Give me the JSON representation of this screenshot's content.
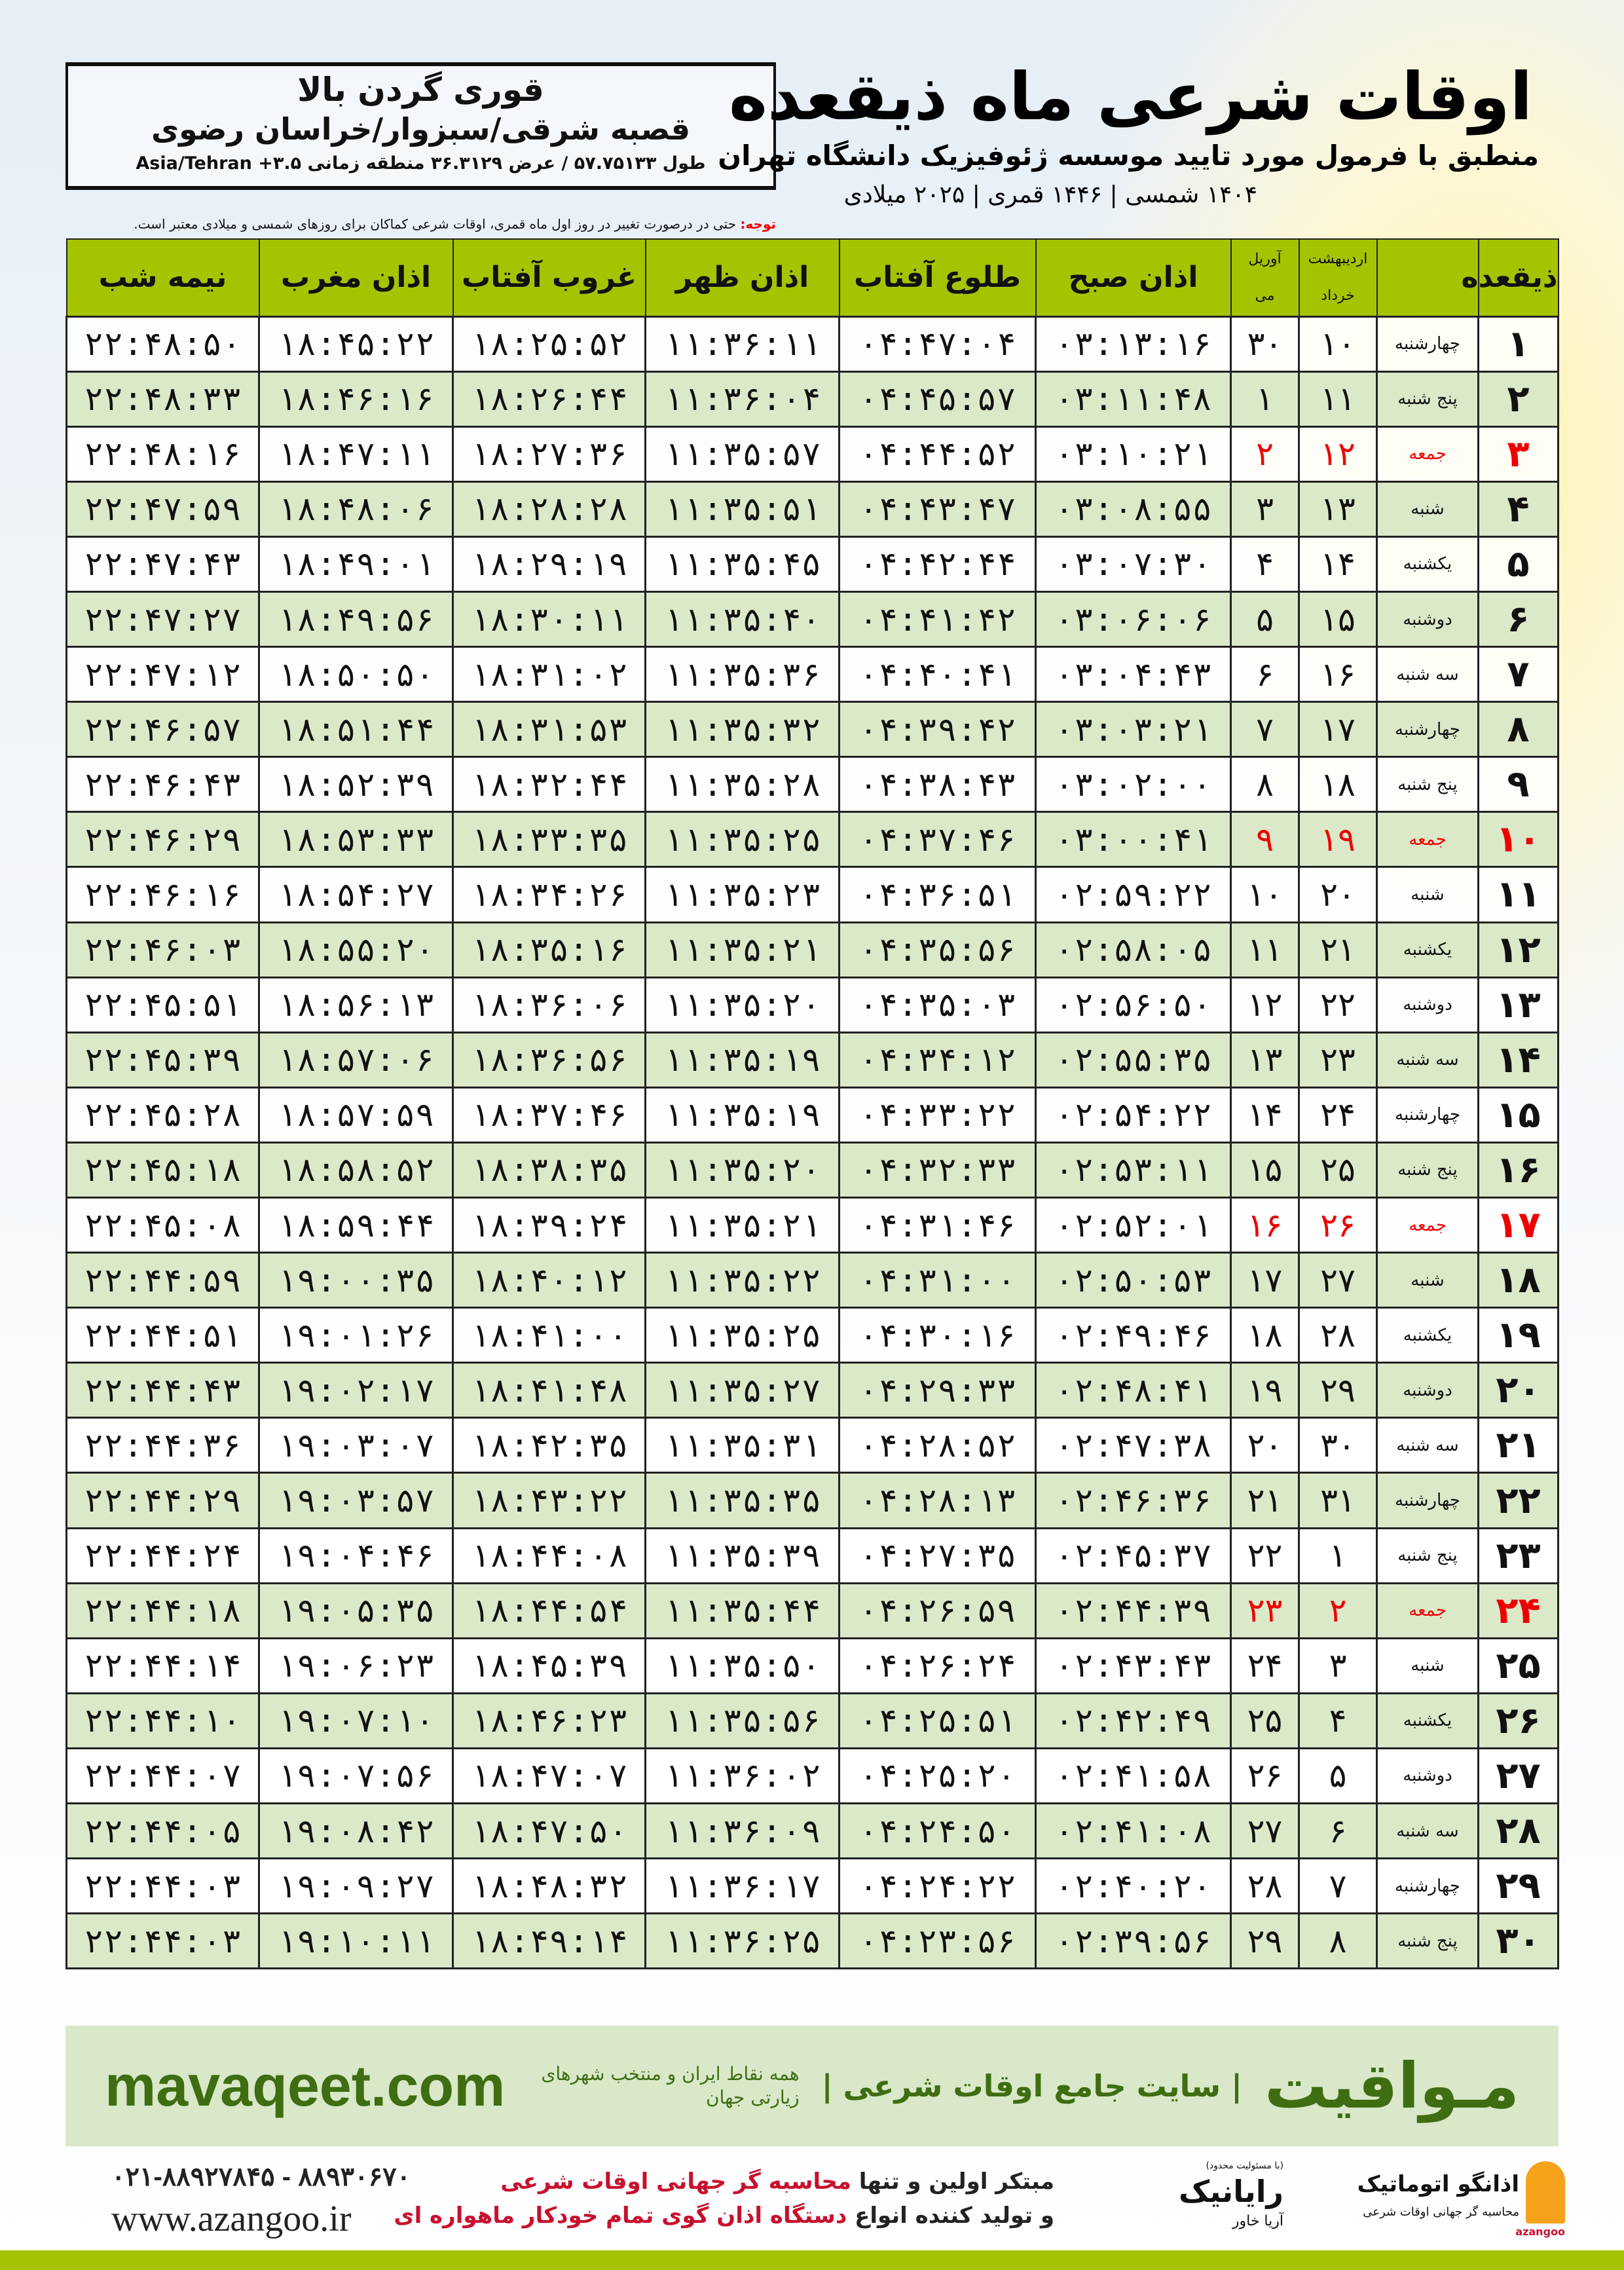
{
  "header": {
    "title": "اوقات شرعی ماه ذیقعده",
    "subtitle": "منطبق با فرمول مورد تایید موسسه ژئوفیزیک دانشگاه تهران",
    "years": "۱۴۰۴ شمسی | ۱۴۴۶ قمری | ۲۰۲۵ میلادی"
  },
  "location": {
    "city": "قوری گردن بالا",
    "region": "قصبه شرقی/سبزوار/خراسان رضوی",
    "coords": "طول ۵۷.۷۵۱۳۳ / عرض ۳۶.۳۱۲۹ منطقه زمانی ۳.۵+ Asia/Tehran"
  },
  "note": {
    "label": "توجه:",
    "text": " حتی در درصورت تغییر در روز اول ماه قمری، اوقات شرعی کماکان برای روزهای شمسی و میلادی معتبر است."
  },
  "table": {
    "headers": {
      "day": "ذیقعده",
      "shamsi_top": "اردیبهشت",
      "shamsi_bottom": "خرداد",
      "miladi_top": "آوریل",
      "miladi_bottom": "می",
      "fajr": "اذان صبح",
      "sunrise": "طلوع آفتاب",
      "dhuhr": "اذان ظهر",
      "sunset": "غروب آفتاب",
      "maghrib": "اذان مغرب",
      "midnight": "نیمه شب"
    },
    "friday_color": "#e00000",
    "header_color": "#a4c400",
    "alt_row_color": "#dbe9c9",
    "rows": [
      [
        "۱",
        "چهارشنبه",
        "۱۰",
        "۳۰",
        "۰۳:۱۳:۱۶",
        "۰۴:۴۷:۰۴",
        "۱۱:۳۶:۱۱",
        "۱۸:۲۵:۵۲",
        "۱۸:۴۵:۲۲",
        "۲۲:۴۸:۵۰"
      ],
      [
        "۲",
        "پنج شنبه",
        "۱۱",
        "۱",
        "۰۳:۱۱:۴۸",
        "۰۴:۴۵:۵۷",
        "۱۱:۳۶:۰۴",
        "۱۸:۲۶:۴۴",
        "۱۸:۴۶:۱۶",
        "۲۲:۴۸:۳۳"
      ],
      [
        "۳",
        "جمعه",
        "۱۲",
        "۲",
        "۰۳:۱۰:۲۱",
        "۰۴:۴۴:۵۲",
        "۱۱:۳۵:۵۷",
        "۱۸:۲۷:۳۶",
        "۱۸:۴۷:۱۱",
        "۲۲:۴۸:۱۶"
      ],
      [
        "۴",
        "شنبه",
        "۱۳",
        "۳",
        "۰۳:۰۸:۵۵",
        "۰۴:۴۳:۴۷",
        "۱۱:۳۵:۵۱",
        "۱۸:۲۸:۲۸",
        "۱۸:۴۸:۰۶",
        "۲۲:۴۷:۵۹"
      ],
      [
        "۵",
        "یکشنبه",
        "۱۴",
        "۴",
        "۰۳:۰۷:۳۰",
        "۰۴:۴۲:۴۴",
        "۱۱:۳۵:۴۵",
        "۱۸:۲۹:۱۹",
        "۱۸:۴۹:۰۱",
        "۲۲:۴۷:۴۳"
      ],
      [
        "۶",
        "دوشنبه",
        "۱۵",
        "۵",
        "۰۳:۰۶:۰۶",
        "۰۴:۴۱:۴۲",
        "۱۱:۳۵:۴۰",
        "۱۸:۳۰:۱۱",
        "۱۸:۴۹:۵۶",
        "۲۲:۴۷:۲۷"
      ],
      [
        "۷",
        "سه شنبه",
        "۱۶",
        "۶",
        "۰۳:۰۴:۴۳",
        "۰۴:۴۰:۴۱",
        "۱۱:۳۵:۳۶",
        "۱۸:۳۱:۰۲",
        "۱۸:۵۰:۵۰",
        "۲۲:۴۷:۱۲"
      ],
      [
        "۸",
        "چهارشنبه",
        "۱۷",
        "۷",
        "۰۳:۰۳:۲۱",
        "۰۴:۳۹:۴۲",
        "۱۱:۳۵:۳۲",
        "۱۸:۳۱:۵۳",
        "۱۸:۵۱:۴۴",
        "۲۲:۴۶:۵۷"
      ],
      [
        "۹",
        "پنج شنبه",
        "۱۸",
        "۸",
        "۰۳:۰۲:۰۰",
        "۰۴:۳۸:۴۳",
        "۱۱:۳۵:۲۸",
        "۱۸:۳۲:۴۴",
        "۱۸:۵۲:۳۹",
        "۲۲:۴۶:۴۳"
      ],
      [
        "۱۰",
        "جمعه",
        "۱۹",
        "۹",
        "۰۳:۰۰:۴۱",
        "۰۴:۳۷:۴۶",
        "۱۱:۳۵:۲۵",
        "۱۸:۳۳:۳۵",
        "۱۸:۵۳:۳۳",
        "۲۲:۴۶:۲۹"
      ],
      [
        "۱۱",
        "شنبه",
        "۲۰",
        "۱۰",
        "۰۲:۵۹:۲۲",
        "۰۴:۳۶:۵۱",
        "۱۱:۳۵:۲۳",
        "۱۸:۳۴:۲۶",
        "۱۸:۵۴:۲۷",
        "۲۲:۴۶:۱۶"
      ],
      [
        "۱۲",
        "یکشنبه",
        "۲۱",
        "۱۱",
        "۰۲:۵۸:۰۵",
        "۰۴:۳۵:۵۶",
        "۱۱:۳۵:۲۱",
        "۱۸:۳۵:۱۶",
        "۱۸:۵۵:۲۰",
        "۲۲:۴۶:۰۳"
      ],
      [
        "۱۳",
        "دوشنبه",
        "۲۲",
        "۱۲",
        "۰۲:۵۶:۵۰",
        "۰۴:۳۵:۰۳",
        "۱۱:۳۵:۲۰",
        "۱۸:۳۶:۰۶",
        "۱۸:۵۶:۱۳",
        "۲۲:۴۵:۵۱"
      ],
      [
        "۱۴",
        "سه شنبه",
        "۲۳",
        "۱۳",
        "۰۲:۵۵:۳۵",
        "۰۴:۳۴:۱۲",
        "۱۱:۳۵:۱۹",
        "۱۸:۳۶:۵۶",
        "۱۸:۵۷:۰۶",
        "۲۲:۴۵:۳۹"
      ],
      [
        "۱۵",
        "چهارشنبه",
        "۲۴",
        "۱۴",
        "۰۲:۵۴:۲۲",
        "۰۴:۳۳:۲۲",
        "۱۱:۳۵:۱۹",
        "۱۸:۳۷:۴۶",
        "۱۸:۵۷:۵۹",
        "۲۲:۴۵:۲۸"
      ],
      [
        "۱۶",
        "پنج شنبه",
        "۲۵",
        "۱۵",
        "۰۲:۵۳:۱۱",
        "۰۴:۳۲:۳۳",
        "۱۱:۳۵:۲۰",
        "۱۸:۳۸:۳۵",
        "۱۸:۵۸:۵۲",
        "۲۲:۴۵:۱۸"
      ],
      [
        "۱۷",
        "جمعه",
        "۲۶",
        "۱۶",
        "۰۲:۵۲:۰۱",
        "۰۴:۳۱:۴۶",
        "۱۱:۳۵:۲۱",
        "۱۸:۳۹:۲۴",
        "۱۸:۵۹:۴۴",
        "۲۲:۴۵:۰۸"
      ],
      [
        "۱۸",
        "شنبه",
        "۲۷",
        "۱۷",
        "۰۲:۵۰:۵۳",
        "۰۴:۳۱:۰۰",
        "۱۱:۳۵:۲۲",
        "۱۸:۴۰:۱۲",
        "۱۹:۰۰:۳۵",
        "۲۲:۴۴:۵۹"
      ],
      [
        "۱۹",
        "یکشنبه",
        "۲۸",
        "۱۸",
        "۰۲:۴۹:۴۶",
        "۰۴:۳۰:۱۶",
        "۱۱:۳۵:۲۵",
        "۱۸:۴۱:۰۰",
        "۱۹:۰۱:۲۶",
        "۲۲:۴۴:۵۱"
      ],
      [
        "۲۰",
        "دوشنبه",
        "۲۹",
        "۱۹",
        "۰۲:۴۸:۴۱",
        "۰۴:۲۹:۳۳",
        "۱۱:۳۵:۲۷",
        "۱۸:۴۱:۴۸",
        "۱۹:۰۲:۱۷",
        "۲۲:۴۴:۴۳"
      ],
      [
        "۲۱",
        "سه شنبه",
        "۳۰",
        "۲۰",
        "۰۲:۴۷:۳۸",
        "۰۴:۲۸:۵۲",
        "۱۱:۳۵:۳۱",
        "۱۸:۴۲:۳۵",
        "۱۹:۰۳:۰۷",
        "۲۲:۴۴:۳۶"
      ],
      [
        "۲۲",
        "چهارشنبه",
        "۳۱",
        "۲۱",
        "۰۲:۴۶:۳۶",
        "۰۴:۲۸:۱۳",
        "۱۱:۳۵:۳۵",
        "۱۸:۴۳:۲۲",
        "۱۹:۰۳:۵۷",
        "۲۲:۴۴:۲۹"
      ],
      [
        "۲۳",
        "پنج شنبه",
        "۱",
        "۲۲",
        "۰۲:۴۵:۳۷",
        "۰۴:۲۷:۳۵",
        "۱۱:۳۵:۳۹",
        "۱۸:۴۴:۰۸",
        "۱۹:۰۴:۴۶",
        "۲۲:۴۴:۲۴"
      ],
      [
        "۲۴",
        "جمعه",
        "۲",
        "۲۳",
        "۰۲:۴۴:۳۹",
        "۰۴:۲۶:۵۹",
        "۱۱:۳۵:۴۴",
        "۱۸:۴۴:۵۴",
        "۱۹:۰۵:۳۵",
        "۲۲:۴۴:۱۸"
      ],
      [
        "۲۵",
        "شنبه",
        "۳",
        "۲۴",
        "۰۲:۴۳:۴۳",
        "۰۴:۲۶:۲۴",
        "۱۱:۳۵:۵۰",
        "۱۸:۴۵:۳۹",
        "۱۹:۰۶:۲۳",
        "۲۲:۴۴:۱۴"
      ],
      [
        "۲۶",
        "یکشنبه",
        "۴",
        "۲۵",
        "۰۲:۴۲:۴۹",
        "۰۴:۲۵:۵۱",
        "۱۱:۳۵:۵۶",
        "۱۸:۴۶:۲۳",
        "۱۹:۰۷:۱۰",
        "۲۲:۴۴:۱۰"
      ],
      [
        "۲۷",
        "دوشنبه",
        "۵",
        "۲۶",
        "۰۲:۴۱:۵۸",
        "۰۴:۲۵:۲۰",
        "۱۱:۳۶:۰۲",
        "۱۸:۴۷:۰۷",
        "۱۹:۰۷:۵۶",
        "۲۲:۴۴:۰۷"
      ],
      [
        "۲۸",
        "سه شنبه",
        "۶",
        "۲۷",
        "۰۲:۴۱:۰۸",
        "۰۴:۲۴:۵۰",
        "۱۱:۳۶:۰۹",
        "۱۸:۴۷:۵۰",
        "۱۹:۰۸:۴۲",
        "۲۲:۴۴:۰۵"
      ],
      [
        "۲۹",
        "چهارشنبه",
        "۷",
        "۲۸",
        "۰۲:۴۰:۲۰",
        "۰۴:۲۴:۲۲",
        "۱۱:۳۶:۱۷",
        "۱۸:۴۸:۳۲",
        "۱۹:۰۹:۲۷",
        "۲۲:۴۴:۰۳"
      ],
      [
        "۳۰",
        "پنج شنبه",
        "۸",
        "۲۹",
        "۰۲:۳۹:۵۶",
        "۰۴:۲۳:۵۶",
        "۱۱:۳۶:۲۵",
        "۱۸:۴۹:۱۴",
        "۱۹:۱۰:۱۱",
        "۲۲:۴۴:۰۳"
      ]
    ]
  },
  "banner": {
    "brand": "مـواقیت",
    "slogan": "| سایت جامع اوقات شرعی |",
    "slogan2": "همه نقاط ایران و منتخب شهرهای زیارتی جهان",
    "site": "mavaqeet.com"
  },
  "footer": {
    "phone": "۰۲۱-۸۸۹۲۷۸۴۵ - ۸۸۹۳۰۶۷۰",
    "web": "www.azangoo.ir",
    "line1_a": "مبتکر اولین و تنها ",
    "line1_b": "محاسبه گر جهانی اوقات شرعی",
    "line2_a": "و تولید کننده انواع ",
    "line2_b": "دستگاه اذان گوی تمام خودکار ماهواره ای",
    "logo_rayanik": "رایانیک",
    "logo_rayanik_sub": "آریا خاور",
    "logo_rayanik_tiny": "(با مسئولیت محدود)",
    "logo_azangoo": "اذانگو اتوماتیک",
    "logo_azangoo_sub": "محاسبه گر جهانی اوقات شرعی",
    "logo_azangoo_en": "azangoo"
  }
}
